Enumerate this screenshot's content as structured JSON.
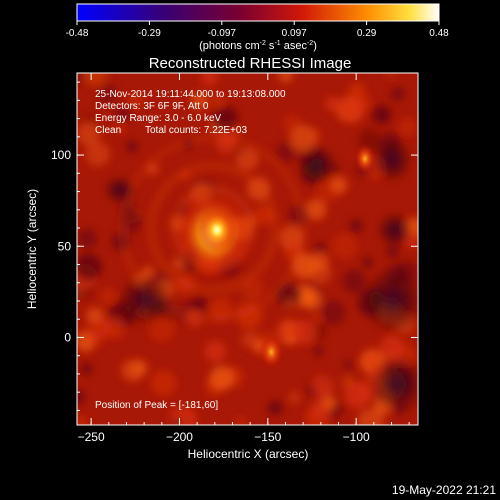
{
  "colorbar": {
    "ticks": [
      "-0.48",
      "-0.29",
      "-0.097",
      "0.097",
      "0.29",
      "0.48"
    ],
    "unit_main": "(photons cm",
    "unit_exp1": "-2",
    "unit_s": " s",
    "unit_exp2": "-1",
    "unit_asec": " asec",
    "unit_exp3": "-2",
    "unit_close": ")"
  },
  "chart_data": {
    "type": "heatmap",
    "title": "Reconstructed RHESSI Image",
    "xlabel": "Heliocentric X (arcsec)",
    "ylabel": "Heliocentric Y (arcsec)",
    "xlim": [
      -258,
      -65
    ],
    "ylim": [
      -48,
      145
    ],
    "xticks": [
      -250,
      -200,
      -150,
      -100
    ],
    "yticks": [
      0,
      50,
      100
    ],
    "colorbar_range": [
      -0.48,
      0.48
    ],
    "colormap": "hot (black-blue-purple-red-orange-yellow-white)",
    "peak": {
      "x": -181,
      "y": 60
    },
    "sources": [
      {
        "x": -181,
        "y": 60,
        "relative_intensity": 1.0
      },
      {
        "x": -148,
        "y": -8,
        "relative_intensity": 0.55
      },
      {
        "x": -95,
        "y": 98,
        "relative_intensity": 0.45
      }
    ],
    "annotations": {
      "time": "25-Nov-2014 19:11:44.000 to 19:13:08.000",
      "detectors": "Detectors: 3F 6F 9F, Att 0",
      "energy": "Energy Range: 3.0 - 6.0 keV",
      "clean": "Clean",
      "counts": "Total counts: 7.22E+03",
      "peak_label": "Position of Peak = [-181,60]"
    }
  },
  "footer": {
    "timestamp": "19-May-2022 21:21"
  }
}
